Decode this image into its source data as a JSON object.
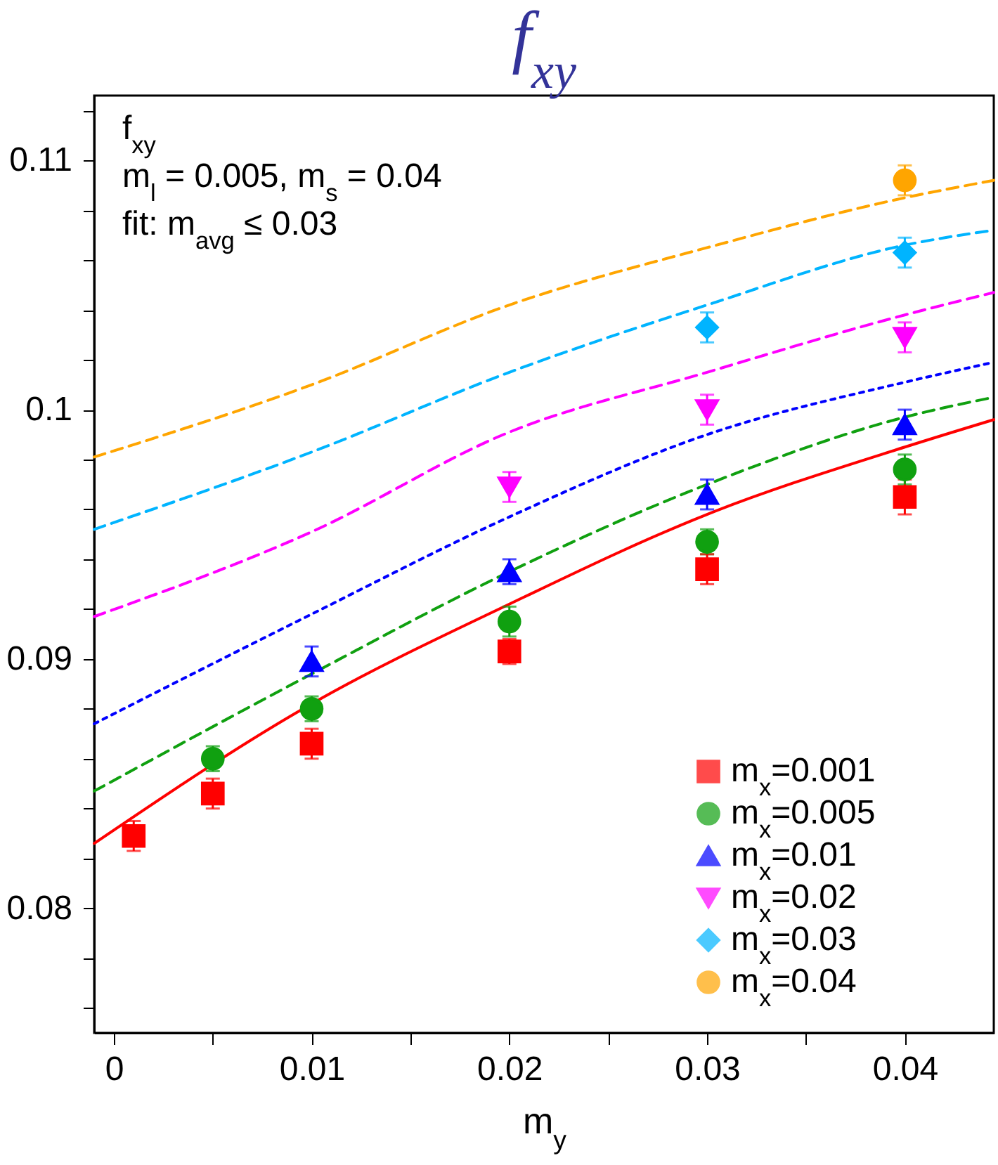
{
  "chart_data": {
    "type": "scatter",
    "title": "f$_{xy}$",
    "xlabel": "m$_{y}$",
    "annotations": [
      "f$_{xy}$",
      "m$_{l}$ = 0.005, m$_{s}$ = 0.04",
      "fit: m$_{avg}$ ≤ 0.03"
    ],
    "xlim": [
      -0.001,
      0.0445
    ],
    "ylim": [
      0.075,
      0.1126
    ],
    "xticks": [
      0,
      {
        "value": 0.005,
        "label": null
      },
      0.01,
      {
        "value": 0.015,
        "label": null
      },
      0.02,
      {
        "value": 0.025,
        "label": null
      },
      0.03,
      {
        "value": 0.035,
        "label": null
      },
      0.04
    ],
    "yticks": [
      {
        "value": 0.076,
        "label": null
      },
      {
        "value": 0.078,
        "label": null
      },
      0.08,
      {
        "value": 0.082,
        "label": null
      },
      {
        "value": 0.084,
        "label": null
      },
      {
        "value": 0.086,
        "label": null
      },
      {
        "value": 0.088,
        "label": null
      },
      0.09,
      {
        "value": 0.092,
        "label": null
      },
      {
        "value": 0.094,
        "label": null
      },
      {
        "value": 0.096,
        "label": null
      },
      {
        "value": 0.098,
        "label": null
      },
      0.1,
      {
        "value": 0.102,
        "label": null
      },
      {
        "value": 0.104,
        "label": null
      },
      {
        "value": 0.106,
        "label": null
      },
      {
        "value": 0.108,
        "label": null
      },
      0.11,
      {
        "value": 0.112,
        "label": null
      }
    ],
    "grid": false,
    "legend": "bottom right",
    "series": [
      {
        "name": "m$_{x}$=0.001",
        "color": "#ff0000",
        "marker": "square",
        "x": [
          0.001,
          0.005,
          0.01,
          0.02,
          0.03,
          0.04
        ],
        "values": [
          0.0829,
          0.0846,
          0.0866,
          0.0903,
          0.0936,
          0.0965
        ],
        "errors": [
          0.0006,
          0.0006,
          0.0006,
          0.0005,
          0.0006,
          0.0007
        ]
      },
      {
        "name": "m$_{x}$=0.005",
        "color": "#10a010",
        "marker": "circle",
        "x": [
          0.005,
          0.01,
          0.02,
          0.03,
          0.04
        ],
        "values": [
          0.086,
          0.088,
          0.0915,
          0.0947,
          0.0976
        ],
        "errors": [
          0.0005,
          0.0005,
          0.0006,
          0.0005,
          0.0006
        ]
      },
      {
        "name": "m$_{x}$=0.01",
        "color": "#0000ff",
        "marker": "triangle",
        "x": [
          0.01,
          0.02,
          0.03,
          0.04
        ],
        "values": [
          0.0899,
          0.0935,
          0.0966,
          0.0994
        ],
        "errors": [
          0.0006,
          0.0005,
          0.0006,
          0.0006
        ]
      },
      {
        "name": "m$_{x}$=0.02",
        "color": "#ff00ff",
        "marker": "triangle-down",
        "x": [
          0.02,
          0.03,
          0.04
        ],
        "values": [
          0.0969,
          0.1,
          0.1029
        ],
        "errors": [
          0.0006,
          0.0006,
          0.0006
        ]
      },
      {
        "name": "m$_{x}$=0.03",
        "color": "#00b4ff",
        "marker": "diamond",
        "x": [
          0.03,
          0.04
        ],
        "values": [
          0.1033,
          0.1063
        ],
        "errors": [
          0.0006,
          0.0006
        ]
      },
      {
        "name": "m$_{x}$=0.04",
        "color": "#ffa500",
        "marker": "circle",
        "x": [
          0.04
        ],
        "values": [
          0.1092
        ],
        "errors": [
          0.0006
        ]
      },
      {
        "type": "line",
        "color": "#ff0000",
        "line_style": "solid",
        "x": [
          -0.001,
          0.01,
          0.02,
          0.03,
          0.04,
          0.0445
        ],
        "values": [
          0.0826,
          0.0882,
          0.0922,
          0.0958,
          0.0985,
          0.0996
        ]
      },
      {
        "type": "line",
        "color": "#10a010",
        "line_style": "dashed",
        "x": [
          -0.001,
          0.01,
          0.02,
          0.03,
          0.04,
          0.0445
        ],
        "values": [
          0.0847,
          0.0894,
          0.0935,
          0.097,
          0.0997,
          0.1005
        ]
      },
      {
        "type": "line",
        "color": "#0000ff",
        "line_style": "dotted",
        "x": [
          -0.001,
          0.01,
          0.02,
          0.03,
          0.04,
          0.0445
        ],
        "values": [
          0.0874,
          0.0918,
          0.0957,
          0.099,
          0.1011,
          0.1019
        ]
      },
      {
        "type": "line",
        "color": "#ff00ff",
        "line_style": "dashed",
        "x": [
          -0.001,
          0.01,
          0.02,
          0.03,
          0.04,
          0.0445
        ],
        "values": [
          0.0917,
          0.0951,
          0.0991,
          0.1015,
          0.1038,
          0.1047
        ]
      },
      {
        "type": "line",
        "color": "#00b4ff",
        "line_style": "dashed",
        "x": [
          -0.001,
          0.01,
          0.02,
          0.03,
          0.04,
          0.0445
        ],
        "values": [
          0.0952,
          0.0983,
          0.1015,
          0.1042,
          0.1066,
          0.1072
        ]
      },
      {
        "type": "line",
        "color": "#ffa500",
        "line_style": "dashed",
        "x": [
          -0.001,
          0.01,
          0.02,
          0.03,
          0.04,
          0.0445
        ],
        "values": [
          0.0981,
          0.101,
          0.1042,
          0.1065,
          0.1085,
          0.1092
        ]
      }
    ]
  }
}
